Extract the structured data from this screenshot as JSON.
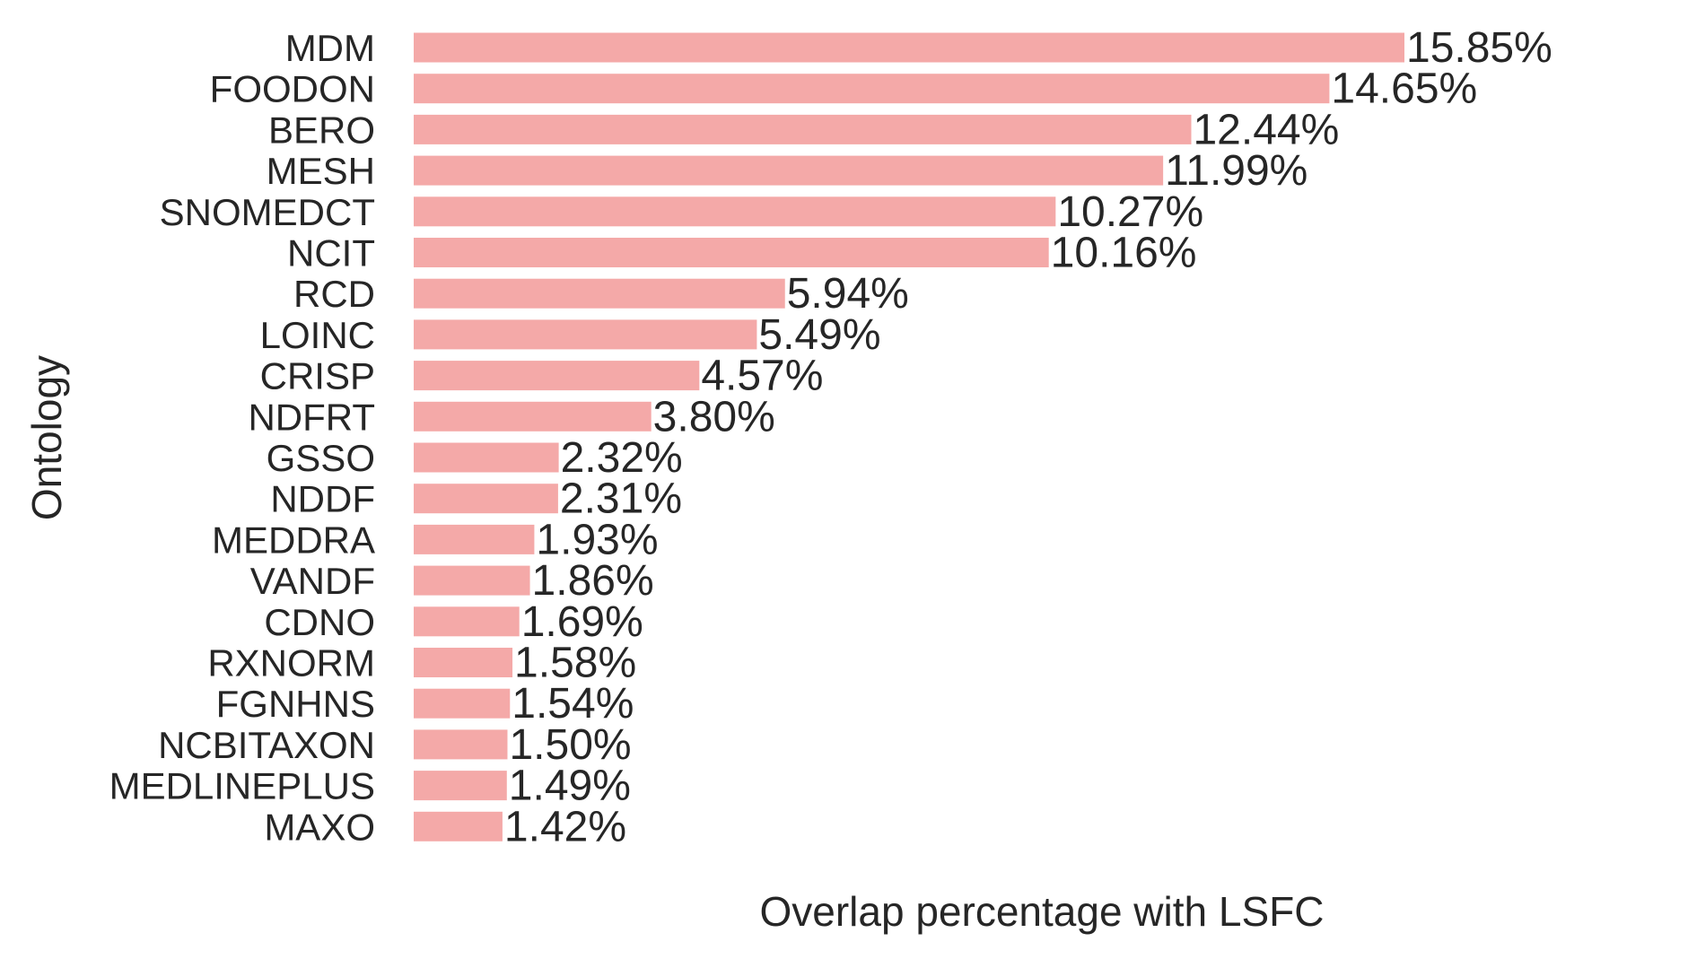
{
  "chart_data": {
    "type": "bar",
    "orientation": "horizontal",
    "xlabel": "Overlap percentage with LSFC",
    "ylabel": "Ontology",
    "bar_color": "#f4a9a8",
    "text_color": "#262626",
    "grid": false,
    "legend": "none",
    "value_suffix": "%",
    "categories": [
      "MDM",
      "FOODON",
      "BERO",
      "MESH",
      "SNOMEDCT",
      "NCIT",
      "RCD",
      "LOINC",
      "CRISP",
      "NDFRT",
      "GSSO",
      "NDDF",
      "MEDDRA",
      "VANDF",
      "CDNO",
      "RXNORM",
      "FGNHNS",
      "NCBITAXON",
      "MEDLINEPLUS",
      "MAXO"
    ],
    "values": [
      15.85,
      14.65,
      12.44,
      11.99,
      10.27,
      10.16,
      5.94,
      5.49,
      4.57,
      3.8,
      2.32,
      2.31,
      1.93,
      1.86,
      1.69,
      1.58,
      1.54,
      1.5,
      1.49,
      1.42
    ],
    "value_labels": [
      "15.85%",
      "14.65%",
      "12.44%",
      "11.99%",
      "10.27%",
      "10.16%",
      "5.94%",
      "5.49%",
      "4.57%",
      "3.80%",
      "2.32%",
      "2.31%",
      "1.93%",
      "1.86%",
      "1.69%",
      "1.58%",
      "1.54%",
      "1.50%",
      "1.49%",
      "1.42%"
    ],
    "xlim": [
      0,
      15.85
    ]
  }
}
